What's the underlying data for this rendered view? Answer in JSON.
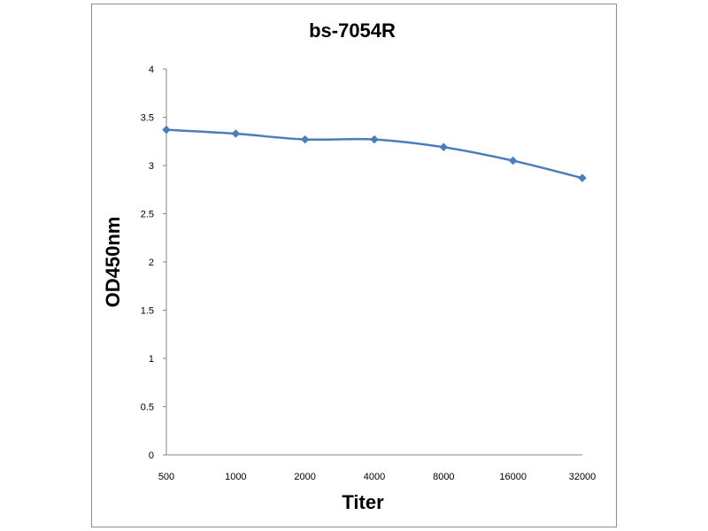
{
  "chart_data": {
    "type": "line",
    "title": "bs-7054R",
    "xlabel": "Titer",
    "ylabel": "OD450nm",
    "categories": [
      "500",
      "1000",
      "2000",
      "4000",
      "8000",
      "16000",
      "32000"
    ],
    "series": [
      {
        "values": [
          3.37,
          3.33,
          3.27,
          3.27,
          3.19,
          3.05,
          2.87
        ],
        "color": "#4a7ebb",
        "marker": "diamond"
      }
    ],
    "yticks": [
      "0",
      "0.5",
      "1",
      "1.5",
      "2",
      "2.5",
      "3",
      "3.5",
      "4"
    ],
    "ylim": [
      0,
      4
    ],
    "grid": false,
    "legend": "none"
  }
}
